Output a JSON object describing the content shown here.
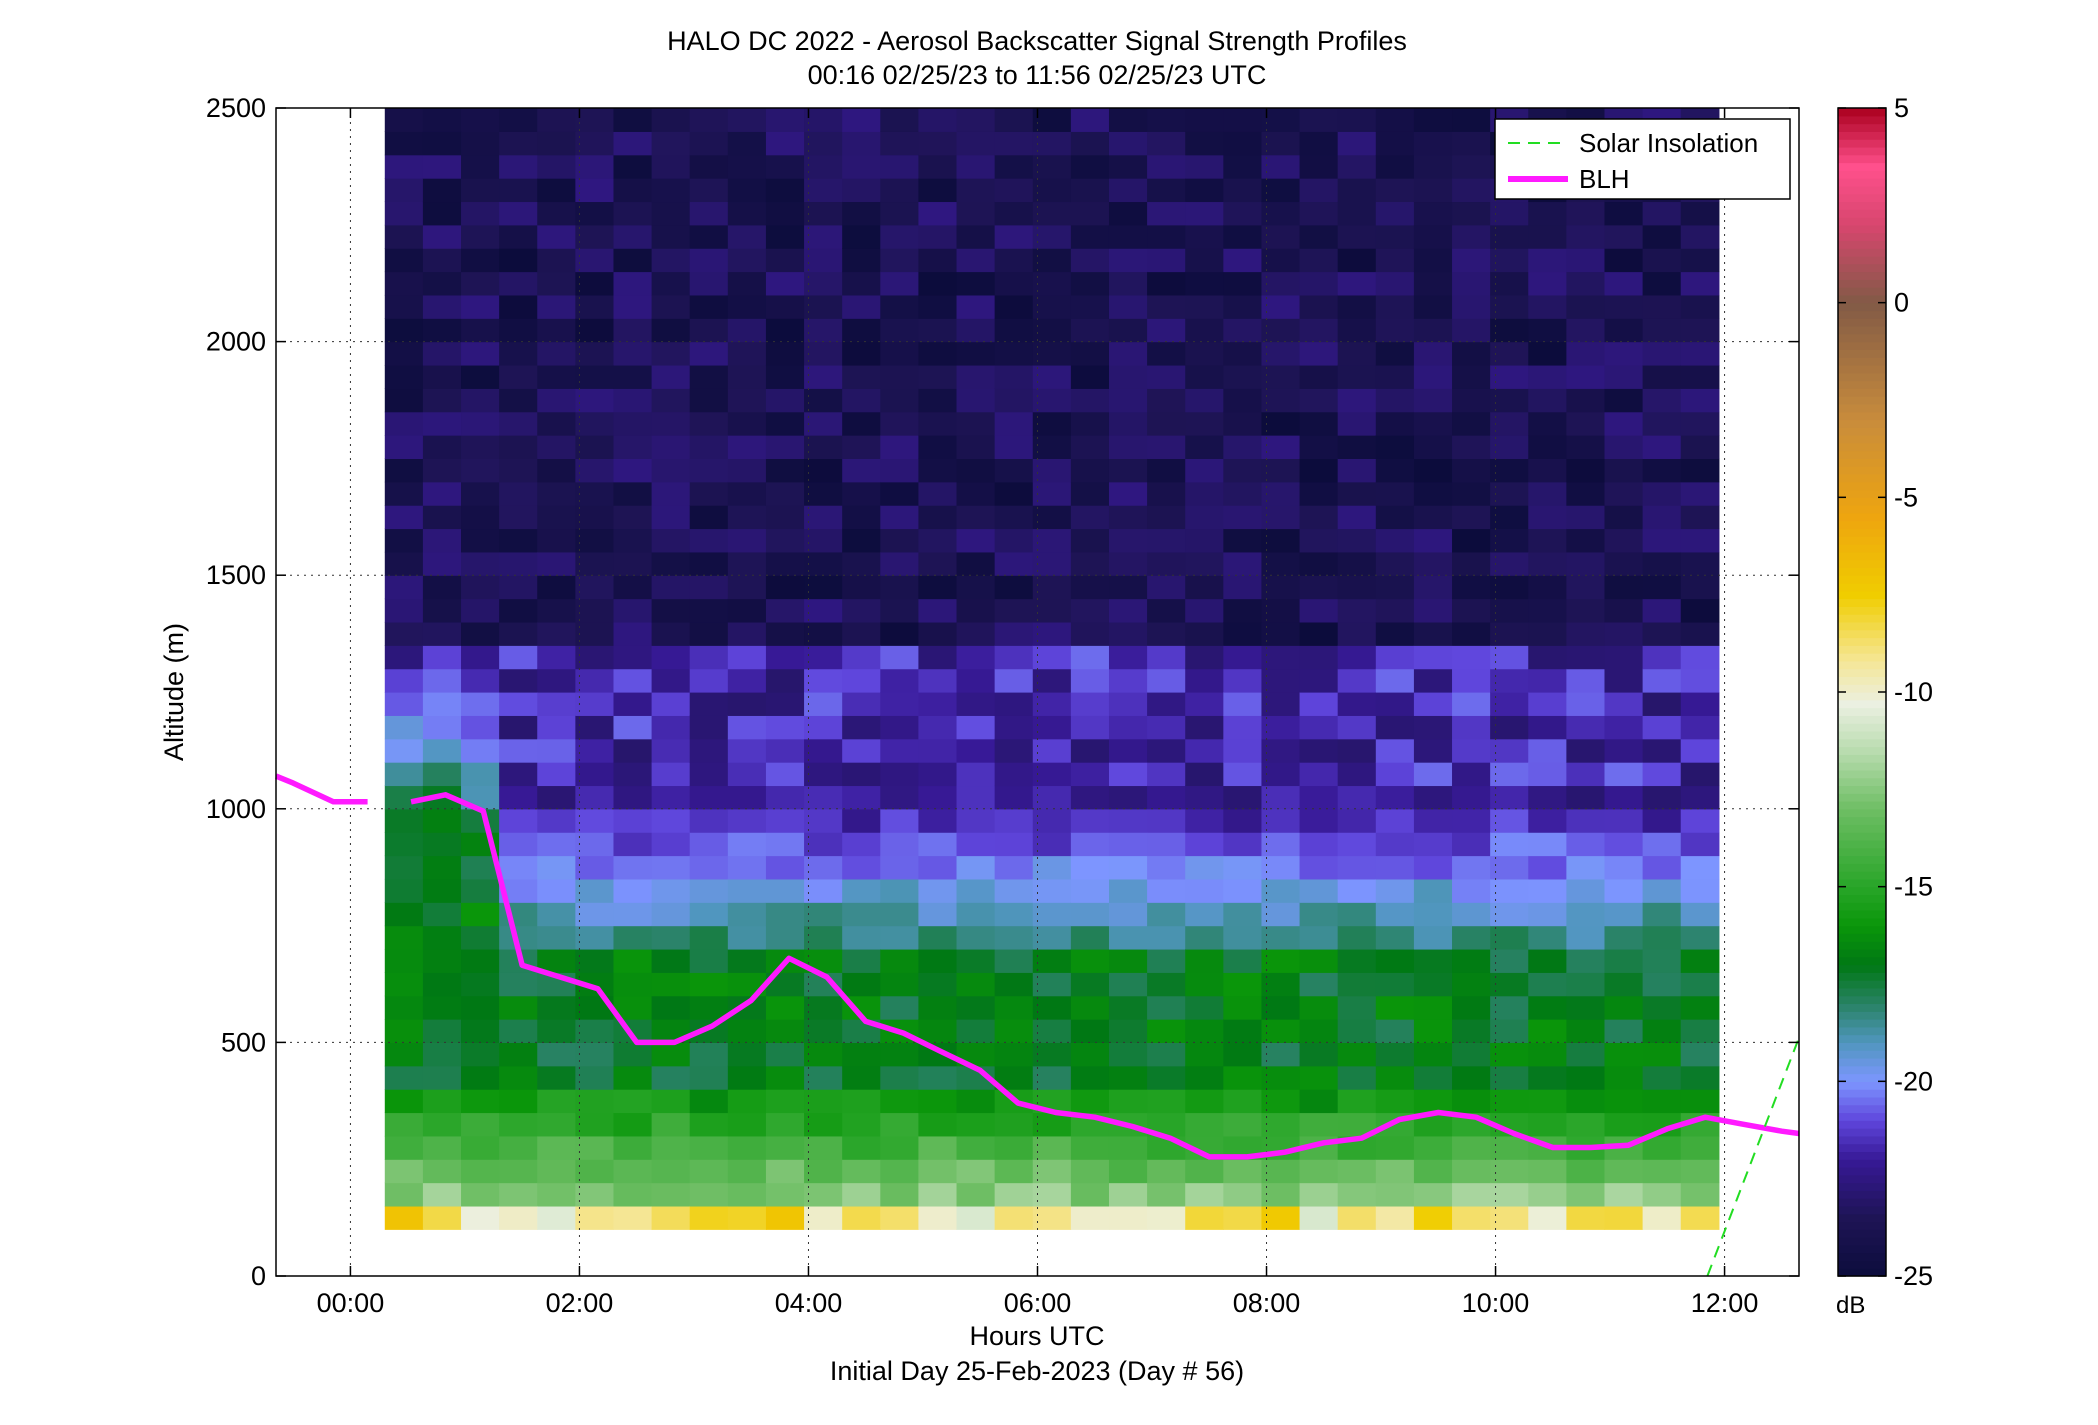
{
  "chart_data": {
    "type": "heatmap",
    "title": "HALO DC 2022 - Aerosol Backscatter Signal Strength Profiles",
    "subtitle": "00:16 02/25/23 to 11:56 02/25/23  UTC",
    "xlabel": "Hours UTC",
    "xlabel2": "Initial Day 25-Feb-2023 (Day # 56)",
    "ylabel": "Altitude (m)",
    "xlim": [
      -0.65,
      12.65
    ],
    "ylim": [
      0,
      2500
    ],
    "x_ticks": [
      {
        "value": 0,
        "label": "00:00"
      },
      {
        "value": 2,
        "label": "02:00"
      },
      {
        "value": 4,
        "label": "04:00"
      },
      {
        "value": 6,
        "label": "06:00"
      },
      {
        "value": 8,
        "label": "08:00"
      },
      {
        "value": 10,
        "label": "10:00"
      },
      {
        "value": 12,
        "label": "12:00"
      }
    ],
    "y_ticks": [
      {
        "value": 0,
        "label": "0"
      },
      {
        "value": 500,
        "label": "500"
      },
      {
        "value": 1000,
        "label": "1000"
      },
      {
        "value": 1500,
        "label": "1500"
      },
      {
        "value": 2000,
        "label": "2000"
      },
      {
        "value": 2500,
        "label": "2500"
      }
    ],
    "grid": true,
    "legend_position": "top-right",
    "colorbar": {
      "label": "dB",
      "range": [
        -25,
        5
      ],
      "ticks": [
        {
          "value": 5,
          "label": "5"
        },
        {
          "value": 0,
          "label": "0"
        },
        {
          "value": -5,
          "label": "-5"
        },
        {
          "value": -10,
          "label": "-10"
        },
        {
          "value": -15,
          "label": "-15"
        },
        {
          "value": -20,
          "label": "-20"
        },
        {
          "value": -25,
          "label": "-25"
        }
      ]
    },
    "heatmap": {
      "x_start": 0.3,
      "x_end": 11.95,
      "y_start": 100,
      "y_end": 2500,
      "n_cols": 35,
      "n_rows": 48,
      "value_unit": "dB"
    },
    "series": [
      {
        "name": "BLH",
        "color": "#ff1aff",
        "segments": [
          {
            "x": [
              -0.65,
              -0.5,
              -0.15,
              0.15
            ],
            "y": [
              1070,
              1055,
              1015,
              1015
            ]
          },
          {
            "x": [
              0.53,
              0.83,
              1.16,
              1.5,
              1.83,
              2.16,
              2.5,
              2.83,
              3.16,
              3.5,
              3.83,
              4.16,
              4.5,
              4.83,
              5.16,
              5.5,
              5.83,
              6.16,
              6.5,
              6.83,
              7.16,
              7.5,
              7.83,
              8.16,
              8.5,
              8.83,
              9.16,
              9.5,
              9.83,
              10.16,
              10.5,
              10.83,
              11.16,
              11.5,
              11.83,
              12.16,
              12.5,
              12.65
            ],
            "y": [
              1015,
              1030,
              995,
              665,
              640,
              615,
              500,
              500,
              535,
              590,
              680,
              640,
              545,
              520,
              480,
              440,
              370,
              350,
              340,
              320,
              295,
              255,
              255,
              265,
              285,
              295,
              335,
              350,
              340,
              305,
              275,
              275,
              280,
              315,
              340,
              325,
              310,
              305
            ]
          }
        ]
      },
      {
        "name": "Solar Insolation",
        "color": "#22dd22",
        "dashed": true,
        "x": [
          11.85,
          12.65
        ],
        "y": [
          0,
          510
        ]
      }
    ]
  }
}
